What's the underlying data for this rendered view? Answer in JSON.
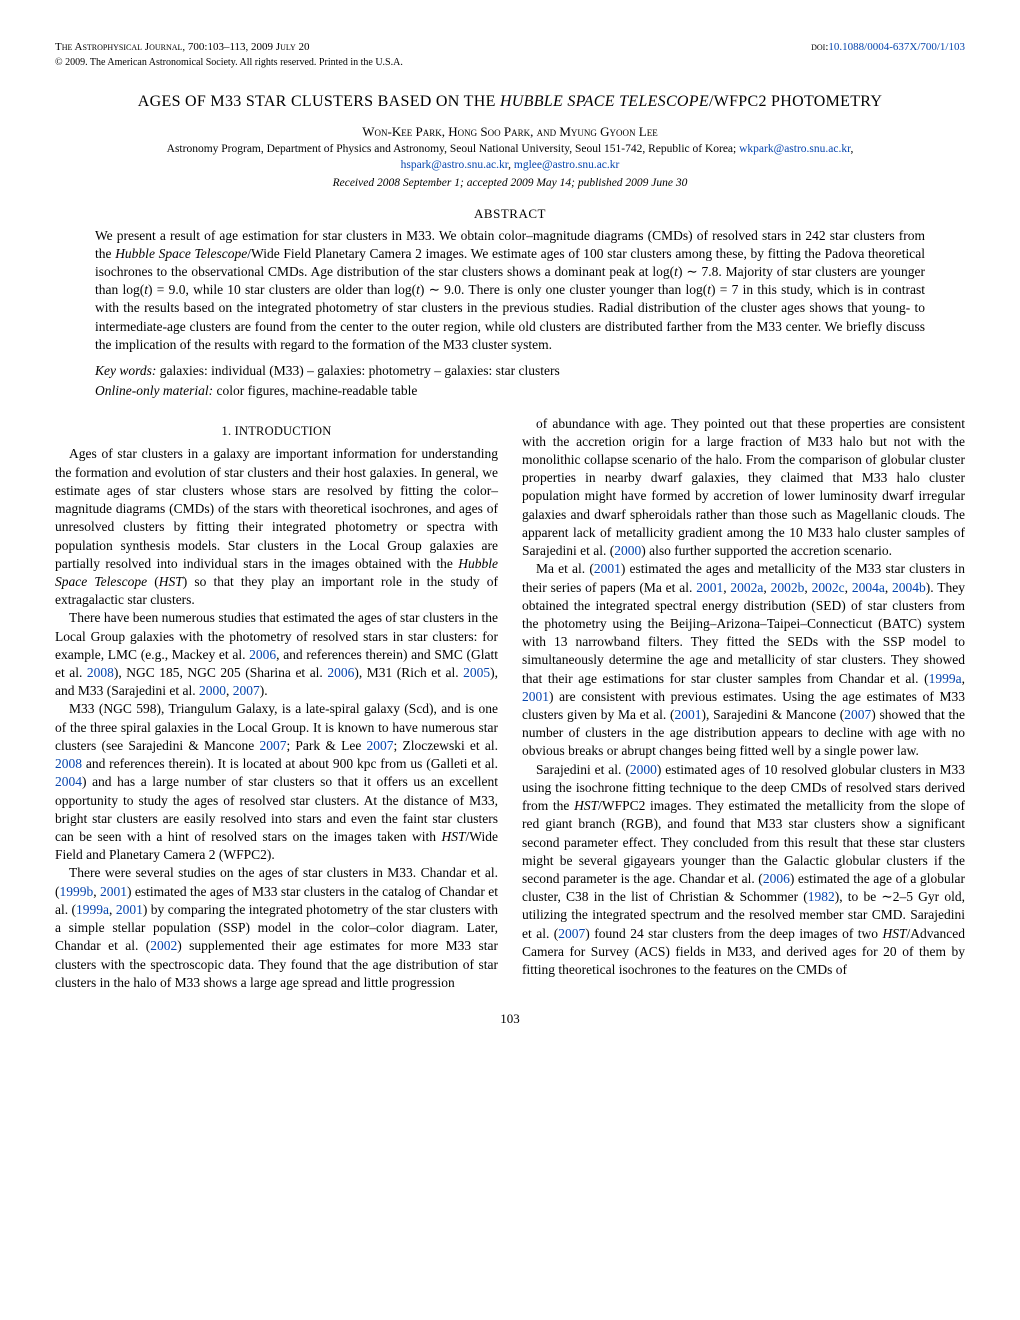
{
  "header": {
    "journal": "The Astrophysical Journal, 700:103–113, 2009 July 20",
    "doi_label": "doi:",
    "doi": "10.1088/0004-637X/700/1/103",
    "copyright": "© 2009. The American Astronomical Society. All rights reserved. Printed in the U.S.A."
  },
  "title": "AGES OF M33 STAR CLUSTERS BASED ON THE HUBBLE SPACE TELESCOPE/WFPC2 PHOTOMETRY",
  "title_html": "AGES OF M33 STAR CLUSTERS BASED ON THE <i>HUBBLE SPACE TELESCOPE</i>/WFPC2 PHOTOMETRY",
  "authors": "Won-Kee Park, Hong Soo Park, and Myung Gyoon Lee",
  "affiliation": "Astronomy Program, Department of Physics and Astronomy, Seoul National University, Seoul 151-742, Republic of Korea;",
  "emails": [
    "wkpark@astro.snu.ac.kr",
    "hspark@astro.snu.ac.kr",
    "mglee@astro.snu.ac.kr"
  ],
  "dates": "Received 2008 September 1; accepted 2009 May 14; published 2009 June 30",
  "abstract_heading": "ABSTRACT",
  "abstract": "We present a result of age estimation for star clusters in M33. We obtain color–magnitude diagrams (CMDs) of resolved stars in 242 star clusters from the <i>Hubble Space Telescope</i>/Wide Field Planetary Camera 2 images. We estimate ages of 100 star clusters among these, by fitting the Padova theoretical isochrones to the observational CMDs. Age distribution of the star clusters shows a dominant peak at log(<i>t</i>) ∼ 7.8. Majority of star clusters are younger than log(<i>t</i>) = 9.0, while 10 star clusters are older than log(<i>t</i>) ∼ 9.0. There is only one cluster younger than log(<i>t</i>) = 7 in this study, which is in contrast with the results based on the integrated photometry of star clusters in the previous studies. Radial distribution of the cluster ages shows that young- to intermediate-age clusters are found from the center to the outer region, while old clusters are distributed farther from the M33 center. We briefly discuss the implication of the results with regard to the formation of the M33 cluster system.",
  "keywords_label": "Key words:",
  "keywords": "galaxies: individual (M33) – galaxies: photometry – galaxies: star clusters",
  "online_label": "Online-only material:",
  "online": "color figures, machine-readable table",
  "section1_title": "1. INTRODUCTION",
  "body": {
    "p1": "Ages of star clusters in a galaxy are important information for understanding the formation and evolution of star clusters and their host galaxies. In general, we estimate ages of star clusters whose stars are resolved by fitting the color–magnitude diagrams (CMDs) of the stars with theoretical isochrones, and ages of unresolved clusters by fitting their integrated photometry or spectra with population synthesis models. Star clusters in the Local Group galaxies are partially resolved into individual stars in the images obtained with the <i>Hubble Space Telescope</i> (<i>HST</i>) so that they play an important role in the study of extragalactic star clusters.",
    "p2": "There have been numerous studies that estimated the ages of star clusters in the Local Group galaxies with the photometry of resolved stars in star clusters: for example, LMC (e.g., Mackey et al. <span class=\"link\">2006</span>, and references therein) and SMC (Glatt et al. <span class=\"link\">2008</span>), NGC 185, NGC 205 (Sharina et al. <span class=\"link\">2006</span>), M31 (Rich et al. <span class=\"link\">2005</span>), and M33 (Sarajedini et al. <span class=\"link\">2000</span>, <span class=\"link\">2007</span>).",
    "p3": "M33 (NGC 598), Triangulum Galaxy, is a late-spiral galaxy (Scd), and is one of the three spiral galaxies in the Local Group. It is known to have numerous star clusters (see Sarajedini & Mancone <span class=\"link\">2007</span>; Park & Lee <span class=\"link\">2007</span>; Zloczewski et al. <span class=\"link\">2008</span> and references therein). It is located at about 900 kpc from us (Galleti et al. <span class=\"link\">2004</span>) and has a large number of star clusters so that it offers us an excellent opportunity to study the ages of resolved star clusters. At the distance of M33, bright star clusters are easily resolved into stars and even the faint star clusters can be seen with a hint of resolved stars on the images taken with <i>HST</i>/Wide Field and Planetary Camera 2 (WFPC2).",
    "p4": "There were several studies on the ages of star clusters in M33. Chandar et al. (<span class=\"link\">1999b</span>, <span class=\"link\">2001</span>) estimated the ages of M33 star clusters in the catalog of Chandar et al. (<span class=\"link\">1999a</span>, <span class=\"link\">2001</span>) by comparing the integrated photometry of the star clusters with a simple stellar population (SSP) model in the color–color diagram. Later, Chandar et al. (<span class=\"link\">2002</span>) supplemented their age estimates for more M33 star clusters with the spectroscopic data. They found that the age distribution of star clusters in the halo of M33 shows a large age spread and little progression",
    "p5": "of abundance with age. They pointed out that these properties are consistent with the accretion origin for a large fraction of M33 halo but not with the monolithic collapse scenario of the halo. From the comparison of globular cluster properties in nearby dwarf galaxies, they claimed that M33 halo cluster population might have formed by accretion of lower luminosity dwarf irregular galaxies and dwarf spheroidals rather than those such as Magellanic clouds. The apparent lack of metallicity gradient among the 10 M33 halo cluster samples of Sarajedini et al. (<span class=\"link\">2000</span>) also further supported the accretion scenario.",
    "p6": "Ma et al. (<span class=\"link\">2001</span>) estimated the ages and metallicity of the M33 star clusters in their series of papers (Ma et al. <span class=\"link\">2001</span>, <span class=\"link\">2002a</span>, <span class=\"link\">2002b</span>, <span class=\"link\">2002c</span>, <span class=\"link\">2004a</span>, <span class=\"link\">2004b</span>). They obtained the integrated spectral energy distribution (SED) of star clusters from the photometry using the Beijing–Arizona–Taipei–Connecticut (BATC) system with 13 narrowband filters. They fitted the SEDs with the SSP model to simultaneously determine the age and metallicity of star clusters. They showed that their age estimations for star cluster samples from Chandar et al. (<span class=\"link\">1999a</span>, <span class=\"link\">2001</span>) are consistent with previous estimates. Using the age estimates of M33 clusters given by Ma et al. (<span class=\"link\">2001</span>), Sarajedini & Mancone (<span class=\"link\">2007</span>) showed that the number of clusters in the age distribution appears to decline with age with no obvious breaks or abrupt changes being fitted well by a single power law.",
    "p7": "Sarajedini et al. (<span class=\"link\">2000</span>) estimated ages of 10 resolved globular clusters in M33 using the isochrone fitting technique to the deep CMDs of resolved stars derived from the <i>HST</i>/WFPC2 images. They estimated the metallicity from the slope of red giant branch (RGB), and found that M33 star clusters show a significant second parameter effect. They concluded from this result that these star clusters might be several gigayears younger than the Galactic globular clusters if the second parameter is the age. Chandar et al. (<span class=\"link\">2006</span>) estimated the age of a globular cluster, C38 in the list of Christian & Schommer (<span class=\"link\">1982</span>), to be ∼2–5 Gyr old, utilizing the integrated spectrum and the resolved member star CMD. Sarajedini et al. (<span class=\"link\">2007</span>) found 24 star clusters from the deep images of two <i>HST</i>/Advanced Camera for Survey (ACS) fields in M33, and derived ages for 20 of them by fitting theoretical isochrones to the features on the CMDs of"
  },
  "page_number": "103",
  "colors": {
    "link": "#0645ad",
    "text": "#000000",
    "background": "#ffffff"
  }
}
